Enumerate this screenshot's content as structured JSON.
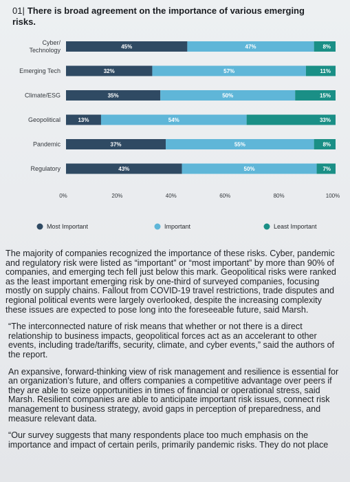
{
  "header": {
    "number": "01|",
    "title": "There is broad agreement on the importance of various emerging risks."
  },
  "chart_data": {
    "type": "bar",
    "orientation": "horizontal",
    "stacked": true,
    "categories": [
      "Cyber/ Technology",
      "Emerging Tech",
      "Climate/ESG",
      "Geopolitical",
      "Pandemic",
      "Regulatory"
    ],
    "category_lines": [
      [
        "Cyber/",
        "Technology"
      ],
      [
        "Emerging Tech"
      ],
      [
        "Climate/ESG"
      ],
      [
        "Geopolitical"
      ],
      [
        "Pandemic"
      ],
      [
        "Regulatory"
      ]
    ],
    "series": [
      {
        "name": "Most Important",
        "color": "#2f4a63",
        "values": [
          45,
          32,
          35,
          13,
          37,
          43
        ],
        "labels": [
          "45%",
          "32%",
          "35%",
          "13%",
          "37%",
          "43%"
        ]
      },
      {
        "name": "Important",
        "color": "#5fb6d8",
        "values": [
          47,
          57,
          50,
          54,
          55,
          50
        ],
        "labels": [
          "47%",
          "57%",
          "50%",
          "54%",
          "55%",
          "50%"
        ]
      },
      {
        "name": "Least Important",
        "color": "#1a8f86",
        "values": [
          8,
          11,
          15,
          33,
          8,
          7
        ],
        "labels": [
          "8%",
          "11%",
          "15%",
          "33%",
          "8%",
          "7%"
        ]
      }
    ],
    "xticks": [
      "0%",
      "20%",
      "40%",
      "60%",
      "80%",
      "100%"
    ],
    "xlim": [
      0,
      100
    ],
    "legend": "bottom",
    "grid": false
  },
  "article": {
    "paragraphs": [
      "The majority of companies recognized the importance of these risks. Cyber, pandemic and regulatory risk were listed as “important” or “most important” by more than 90% of companies, and emerging tech fell just below this mark. Geopolitical risks were ranked as the least important emerging risk by one-third of surveyed companies, focusing mostly on supply chains. Fallout from COVID-19 travel restrictions, trade disputes and regional political events were largely overlooked, despite the increasing complexity these issues are expected to pose long into the foreseeable future, said Marsh.",
      "“The interconnected nature of risk means that whether or not there is a direct relationship to business impacts, geopolitical forces act as an accelerant to other events, including trade/tariffs, security, climate, and cyber events,” said the authors of the report.",
      "An expansive, forward-thinking view of risk management and resilience is essential for an organization’s future, and offers companies a competitive advantage over peers if they are able to seize opportunities in times of financial or operational stress, said Marsh. Resilient companies are able to anticipate important risk issues, connect risk management to business strategy, avoid gaps in perception of preparedness, and measure relevant data.",
      "“Our survey suggests that many respondents place too much emphasis on the importance and impact of certain perils, primarily pandemic risks. They do not place"
    ]
  }
}
